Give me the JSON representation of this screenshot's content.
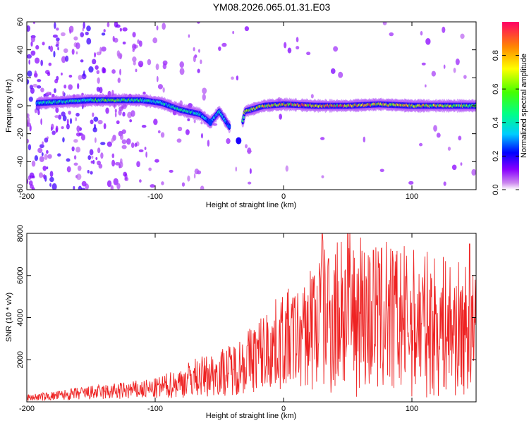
{
  "title": "YM08.2026.065.01.31.E03",
  "colors": {
    "frame": "#000000",
    "snr_line": "#ee2222",
    "background": "#ffffff"
  },
  "chart_data": [
    {
      "type": "heatmap",
      "title": "YM08.2026.065.01.31.E03",
      "xlabel": "Height of straight line (km)",
      "ylabel": "Frequency (Hz)",
      "xlim": [
        -200,
        150
      ],
      "ylim": [
        -60,
        60
      ],
      "x_ticks": [
        -200,
        -100,
        0,
        100
      ],
      "y_ticks": [
        -60,
        -40,
        -20,
        0,
        20,
        40,
        60
      ],
      "colormap": "rainbow (purple to red)",
      "colorbar": {
        "label": "Normalized spectral amplitude",
        "range": [
          0,
          1
        ],
        "ticks": [
          0.0,
          0.2,
          0.4,
          0.6,
          0.8
        ]
      },
      "ridge": [
        {
          "x": -190,
          "y": 2,
          "amp": 0.45
        },
        {
          "x": -170,
          "y": 3,
          "amp": 0.5
        },
        {
          "x": -150,
          "y": 4,
          "amp": 0.55
        },
        {
          "x": -130,
          "y": 4,
          "amp": 0.65
        },
        {
          "x": -110,
          "y": 4,
          "amp": 0.55
        },
        {
          "x": -95,
          "y": 2,
          "amp": 0.45
        },
        {
          "x": -80,
          "y": -3,
          "amp": 0.5
        },
        {
          "x": -65,
          "y": -6,
          "amp": 0.45
        },
        {
          "x": -57,
          "y": -12,
          "amp": 0.3
        },
        {
          "x": -50,
          "y": -4,
          "amp": 0.5
        },
        {
          "x": -35,
          "y": -25,
          "amp": 0.2
        },
        {
          "x": -30,
          "y": -4,
          "amp": 0.8
        },
        {
          "x": -15,
          "y": 0,
          "amp": 0.85
        },
        {
          "x": 0,
          "y": 1,
          "amp": 0.9
        },
        {
          "x": 25,
          "y": 0,
          "amp": 0.95
        },
        {
          "x": 50,
          "y": 0,
          "amp": 0.95
        },
        {
          "x": 75,
          "y": 1,
          "amp": 0.9
        },
        {
          "x": 100,
          "y": 0,
          "amp": 0.9
        },
        {
          "x": 125,
          "y": 0,
          "amp": 0.8
        },
        {
          "x": 145,
          "y": 0,
          "amp": 0.7
        }
      ]
    },
    {
      "type": "line",
      "xlabel": "Height of straight line (km)",
      "ylabel": "SNR (10 * v/v)",
      "xlim": [
        -200,
        150
      ],
      "ylim": [
        0,
        8000
      ],
      "x_ticks": [
        -200,
        -100,
        0,
        100
      ],
      "y_ticks": [
        2000,
        4000,
        6000,
        8000
      ],
      "series": [
        {
          "x": [
            -200,
            -180,
            -160,
            -140,
            -120,
            -100,
            -90,
            -80,
            -70,
            -60,
            -50,
            -40,
            -30,
            -20,
            -10,
            0,
            10,
            20,
            30,
            40,
            50,
            60,
            70,
            80,
            90,
            100,
            110,
            120,
            130,
            140,
            150
          ],
          "y": [
            250,
            350,
            500,
            600,
            700,
            800,
            1000,
            1200,
            1500,
            1600,
            1800,
            2000,
            2400,
            2900,
            3300,
            3800,
            3900,
            4100,
            4400,
            4600,
            4600,
            4500,
            4400,
            4300,
            4300,
            4200,
            4100,
            4000,
            3900,
            3800,
            3600
          ],
          "peaks": [
            {
              "x": 30,
              "y": 8000
            },
            {
              "x": 50,
              "y": 8000
            },
            {
              "x": 45,
              "y": 7600
            },
            {
              "x": 60,
              "y": 7800
            },
            {
              "x": 80,
              "y": 7600
            },
            {
              "x": 145,
              "y": 7500
            },
            {
              "x": 35,
              "y": 6800
            },
            {
              "x": 70,
              "y": 7200
            }
          ]
        }
      ]
    }
  ]
}
